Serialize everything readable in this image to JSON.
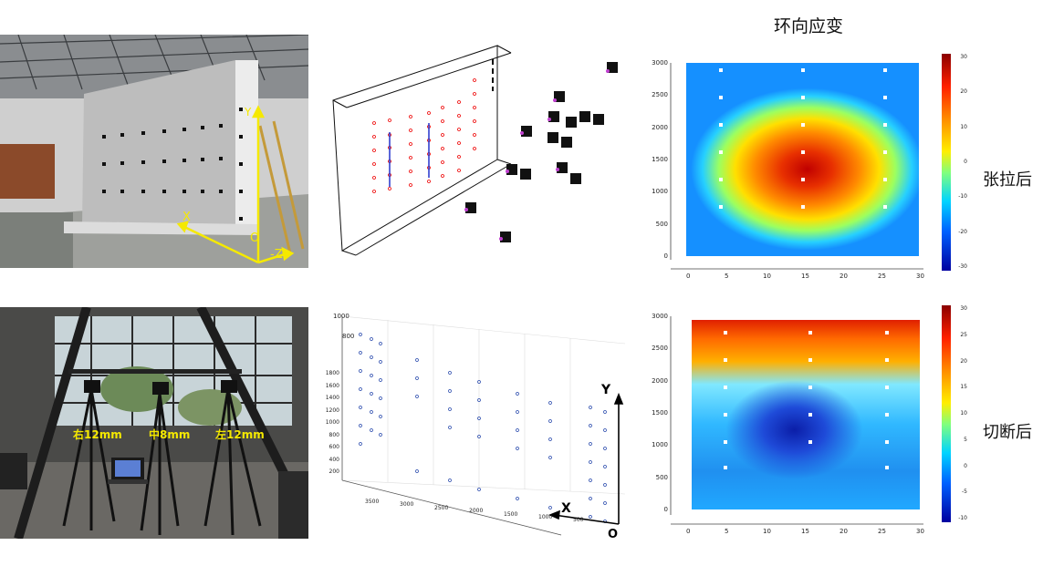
{
  "title": "环向应变",
  "row_labels": {
    "top": "张拉后",
    "bottom": "切断后"
  },
  "photo1": {
    "axis_labels": {
      "x": "X",
      "y": "Y",
      "origin": "O",
      "z": "-Z"
    }
  },
  "photo2": {
    "camera_labels": {
      "right": "右12mm",
      "middle": "中8mm",
      "left": "左12mm"
    }
  },
  "plot3d_bottom": {
    "axis_labels": {
      "x": "X",
      "y": "Y",
      "origin": "O"
    },
    "y_ticks": [
      "1800",
      "1600",
      "1400",
      "1200",
      "1000",
      "800",
      "600",
      "400",
      "200"
    ],
    "x_ticks": [
      "3500",
      "3000",
      "2500",
      "2000",
      "1500",
      "1000",
      "500"
    ]
  },
  "heatmaps": [
    {
      "name": "top",
      "y_ticks": [
        "3000",
        "2500",
        "2000",
        "1500",
        "1000",
        "500",
        "0"
      ],
      "x_ticks": [
        "0",
        "5",
        "10",
        "15",
        "20",
        "25",
        "30"
      ],
      "colorbar_ticks": [
        "30",
        "20",
        "10",
        "0",
        "-10",
        "-20",
        "-30"
      ]
    },
    {
      "name": "bottom",
      "y_ticks": [
        "3000",
        "2500",
        "2000",
        "1500",
        "1000",
        "500",
        "0"
      ],
      "x_ticks": [
        "0",
        "5",
        "10",
        "15",
        "20",
        "25",
        "30"
      ],
      "colorbar_ticks": [
        "30",
        "25",
        "20",
        "15",
        "10",
        "5",
        "0",
        "-5",
        "-10"
      ]
    }
  ],
  "colors": {
    "axis_yellow": "#f5e900",
    "strain_high": "#b40000",
    "strain_low": "#0000a0"
  }
}
